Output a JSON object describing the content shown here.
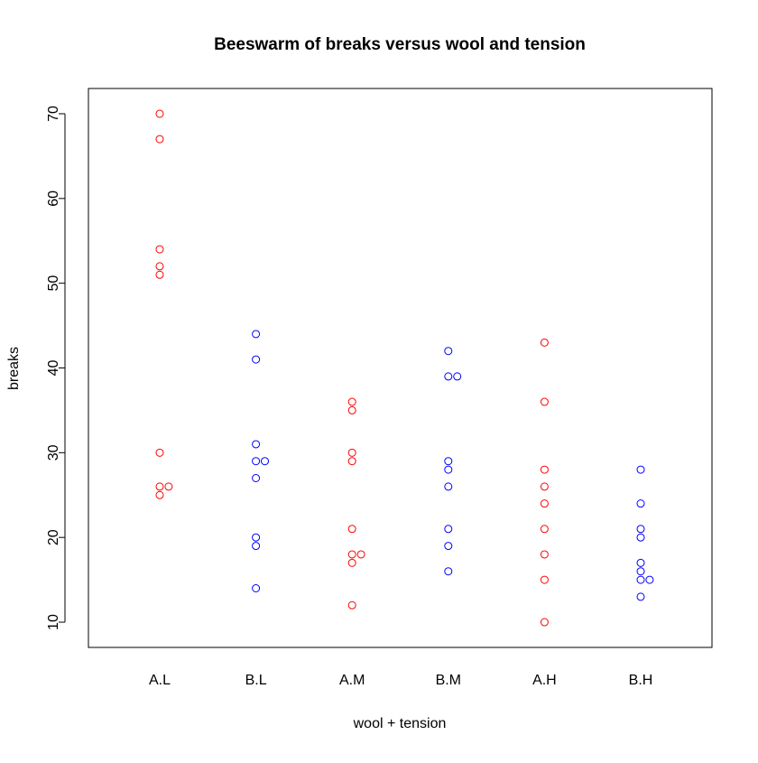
{
  "chart_data": {
    "type": "beeswarm",
    "title": "Beeswarm of breaks versus wool and tension",
    "x_label": "wool + tension",
    "y_label": "breaks",
    "series": [
      {
        "name": "A.L",
        "color": "#ff0000",
        "values": [
          26,
          30,
          54,
          25,
          70,
          52,
          51,
          26,
          67
        ]
      },
      {
        "name": "B.L",
        "color": "#0000ff",
        "values": [
          27,
          14,
          29,
          19,
          29,
          31,
          41,
          20,
          44
        ]
      },
      {
        "name": "A.M",
        "color": "#ff0000",
        "values": [
          18,
          21,
          29,
          17,
          12,
          18,
          35,
          30,
          36
        ]
      },
      {
        "name": "B.M",
        "color": "#0000ff",
        "values": [
          42,
          26,
          19,
          16,
          39,
          28,
          21,
          39,
          29
        ]
      },
      {
        "name": "A.H",
        "color": "#ff0000",
        "values": [
          36,
          21,
          24,
          18,
          10,
          43,
          28,
          15,
          26
        ]
      },
      {
        "name": "B.H",
        "color": "#0000ff",
        "values": [
          20,
          21,
          24,
          17,
          13,
          15,
          15,
          16,
          28
        ]
      }
    ],
    "ylim": [
      7.02,
      72.98
    ],
    "yticks": [
      10,
      20,
      30,
      40,
      50,
      60,
      70
    ]
  }
}
